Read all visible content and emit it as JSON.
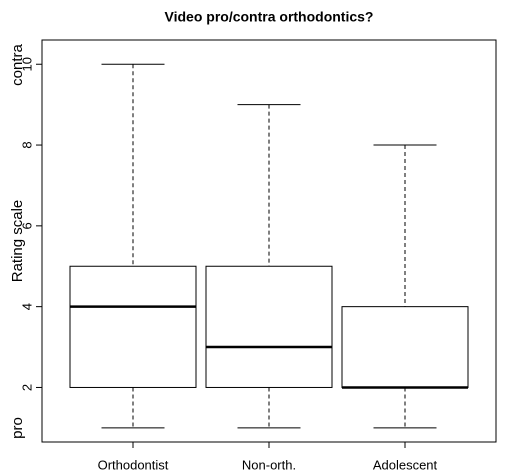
{
  "chart_data": {
    "type": "box",
    "title": "Video pro/contra orthodontics?",
    "ylabel": "Rating scale",
    "annotations": [
      "contra",
      "pro"
    ],
    "categories": [
      "Orthodontist",
      "Non-orth.",
      "Adolescent"
    ],
    "boxes": [
      {
        "min": 1,
        "q1": 2,
        "median": 4,
        "q3": 5,
        "max": 10
      },
      {
        "min": 1,
        "q1": 2,
        "median": 3,
        "q3": 5,
        "max": 9
      },
      {
        "min": 1,
        "q1": 2,
        "median": 2,
        "q3": 4,
        "max": 8
      }
    ],
    "color": "#000000",
    "fill": "#ffffff",
    "ylim": [
      0.65,
      10.6
    ],
    "yticks": [
      2,
      4,
      6,
      8,
      10
    ]
  }
}
